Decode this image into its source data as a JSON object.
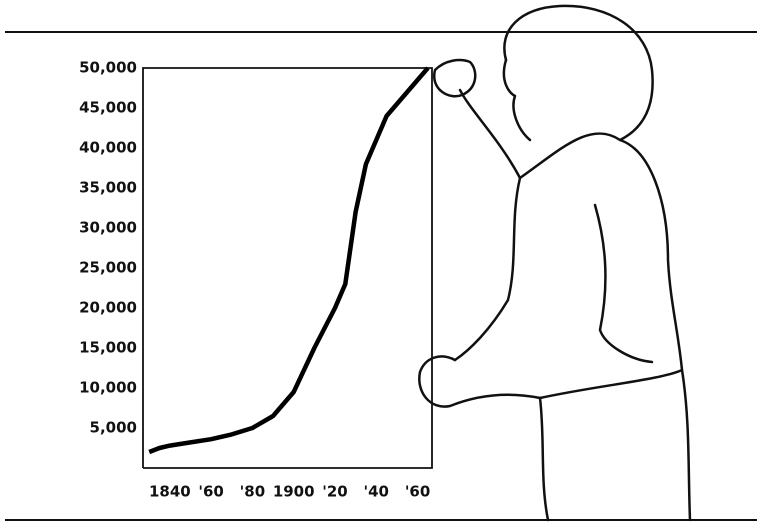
{
  "chart_data": {
    "type": "line",
    "x": [
      1830,
      1835,
      1840,
      1850,
      1860,
      1870,
      1880,
      1890,
      1900,
      1910,
      1920,
      1925,
      1930,
      1935,
      1940,
      1945,
      1950,
      1955,
      1960,
      1965
    ],
    "values": [
      2000,
      2500,
      2800,
      3200,
      3600,
      4200,
      5000,
      6500,
      9500,
      15000,
      20000,
      23000,
      32000,
      38000,
      41000,
      44000,
      45500,
      47000,
      48500,
      50000
    ],
    "color": "#000000",
    "xlim": [
      1827,
      1967
    ],
    "xticks": [
      1840,
      {
        "value": 1860,
        "label": "'60"
      },
      {
        "value": 1880,
        "label": "'80"
      },
      1900,
      {
        "value": 1920,
        "label": "'20"
      },
      {
        "value": 1940,
        "label": "'40"
      },
      {
        "value": 1960,
        "label": "'60"
      }
    ],
    "ylim": [
      0,
      50000
    ],
    "yticks": [
      {
        "value": 5000,
        "label": "5,000"
      },
      {
        "value": 10000,
        "label": "10,000"
      },
      {
        "value": 15000,
        "label": "15,000"
      },
      {
        "value": 20000,
        "label": "20,000"
      },
      {
        "value": 25000,
        "label": "25,000"
      },
      {
        "value": 30000,
        "label": "30,000"
      },
      {
        "value": 35000,
        "label": "35,000"
      },
      {
        "value": 40000,
        "label": "40,000"
      },
      {
        "value": 45000,
        "label": "45,000"
      },
      {
        "value": 50000,
        "label": "50,000"
      }
    ],
    "grid": false
  }
}
